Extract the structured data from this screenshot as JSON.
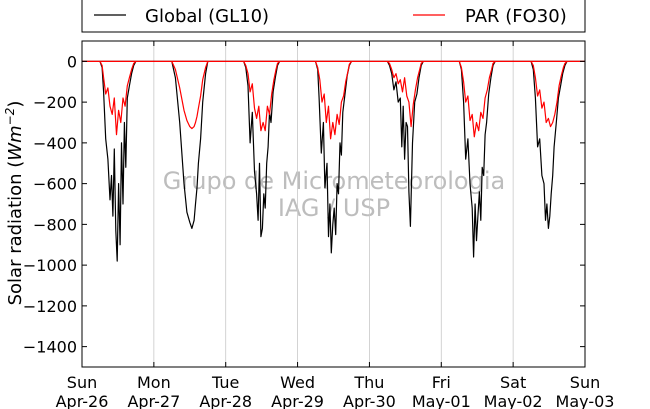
{
  "chart_data": {
    "type": "line",
    "title": "",
    "xlabel": "",
    "ylabel": "Solar radiation (Wm-2)",
    "ylabel_parts": {
      "text": "Solar radiation ",
      "lparen": "(",
      "unit": "Wm",
      "exp": "−2",
      "rparen": ")"
    },
    "ylim": [
      -1500,
      100
    ],
    "yticks": [
      0,
      -200,
      -400,
      -600,
      -800,
      -1000,
      -1200,
      -1400
    ],
    "ytick_labels": [
      "0",
      "−200",
      "−400",
      "−600",
      "−800",
      "−1000",
      "−1200",
      "−1400"
    ],
    "xlim": [
      0,
      7
    ],
    "xticks": [
      0,
      1,
      2,
      3,
      4,
      5,
      6,
      7
    ],
    "xtick_labels": [
      [
        "Sun",
        "Apr-26"
      ],
      [
        "Mon",
        "Apr-27"
      ],
      [
        "Tue",
        "Apr-28"
      ],
      [
        "Wed",
        "Apr-29"
      ],
      [
        "Thu",
        "Apr-30"
      ],
      [
        "Fri",
        "May-01"
      ],
      [
        "Sat",
        "May-02"
      ],
      [
        "Sun",
        "May-03"
      ]
    ],
    "grid": "vertical",
    "legend_position": "top",
    "watermark": [
      "Grupo de Micrometeorologia",
      "IAG / USP"
    ],
    "series": [
      {
        "name": "Global (GL10)",
        "color": "#000000",
        "days": [
          {
            "x": [
              0.25,
              0.28,
              0.3,
              0.33,
              0.36,
              0.39,
              0.41,
              0.43,
              0.45,
              0.47,
              0.49,
              0.51,
              0.53,
              0.55,
              0.57,
              0.59,
              0.61,
              0.63,
              0.66,
              0.69,
              0.72,
              0.75
            ],
            "y": [
              0,
              -30,
              -150,
              -380,
              -480,
              -680,
              -560,
              -760,
              -430,
              -830,
              -980,
              -600,
              -900,
              -400,
              -700,
              -300,
              -520,
              -180,
              -120,
              -60,
              -20,
              0
            ]
          },
          {
            "x": [
              1.25,
              1.3,
              1.36,
              1.42,
              1.46,
              1.5,
              1.53,
              1.56,
              1.58,
              1.6,
              1.62,
              1.65,
              1.68,
              1.72,
              1.75
            ],
            "y": [
              0,
              -80,
              -300,
              -600,
              -740,
              -790,
              -820,
              -780,
              -700,
              -620,
              -500,
              -380,
              -200,
              -60,
              0
            ]
          },
          {
            "x": [
              2.25,
              2.28,
              2.31,
              2.34,
              2.37,
              2.4,
              2.43,
              2.45,
              2.47,
              2.49,
              2.51,
              2.53,
              2.55,
              2.57,
              2.59,
              2.61,
              2.63,
              2.66,
              2.69,
              2.72,
              2.75
            ],
            "y": [
              0,
              -30,
              -120,
              -400,
              -250,
              -540,
              -650,
              -780,
              -500,
              -860,
              -820,
              -650,
              -720,
              -500,
              -420,
              -250,
              -300,
              -150,
              -80,
              -20,
              0
            ]
          },
          {
            "x": [
              3.25,
              3.28,
              3.3,
              3.33,
              3.36,
              3.38,
              3.41,
              3.43,
              3.45,
              3.47,
              3.49,
              3.51,
              3.53,
              3.55,
              3.57,
              3.59,
              3.61,
              3.63,
              3.66,
              3.69,
              3.72,
              3.75
            ],
            "y": [
              0,
              -40,
              -180,
              -450,
              -300,
              -620,
              -500,
              -860,
              -700,
              -940,
              -800,
              -720,
              -850,
              -600,
              -650,
              -400,
              -460,
              -250,
              -160,
              -70,
              -20,
              0
            ]
          },
          {
            "x": [
              4.25,
              4.28,
              4.31,
              4.34,
              4.37,
              4.4,
              4.43,
              4.45,
              4.47,
              4.49,
              4.51,
              4.53,
              4.55,
              4.57,
              4.6,
              4.63,
              4.66,
              4.69,
              4.72,
              4.75
            ],
            "y": [
              0,
              -20,
              -60,
              -140,
              -100,
              -200,
              -180,
              -420,
              -220,
              -480,
              -300,
              -320,
              -640,
              -810,
              -400,
              -200,
              -160,
              -80,
              -20,
              0
            ]
          },
          {
            "x": [
              5.25,
              5.28,
              5.31,
              5.34,
              5.37,
              5.4,
              5.43,
              5.45,
              5.47,
              5.49,
              5.51,
              5.53,
              5.55,
              5.57,
              5.59,
              5.61,
              5.63,
              5.66,
              5.69,
              5.72,
              5.75
            ],
            "y": [
              0,
              -40,
              -200,
              -480,
              -380,
              -600,
              -720,
              -960,
              -700,
              -880,
              -760,
              -640,
              -780,
              -520,
              -560,
              -360,
              -300,
              -160,
              -80,
              -20,
              0
            ]
          },
          {
            "x": [
              6.25,
              6.28,
              6.31,
              6.34,
              6.37,
              6.4,
              6.43,
              6.45,
              6.47,
              6.49,
              6.51,
              6.53,
              6.55,
              6.57,
              6.6,
              6.63,
              6.66,
              6.69,
              6.72,
              6.75
            ],
            "y": [
              0,
              -40,
              -180,
              -420,
              -380,
              -560,
              -600,
              -780,
              -700,
              -820,
              -760,
              -650,
              -560,
              -420,
              -300,
              -180,
              -120,
              -60,
              -20,
              0
            ]
          }
        ]
      },
      {
        "name": "PAR (FO30)",
        "color": "#ff0000",
        "days": [
          {
            "x": [
              0.25,
              0.28,
              0.3,
              0.33,
              0.36,
              0.39,
              0.42,
              0.45,
              0.48,
              0.51,
              0.54,
              0.57,
              0.6,
              0.63,
              0.66,
              0.69,
              0.72,
              0.75
            ],
            "y": [
              0,
              -20,
              -80,
              -160,
              -130,
              -220,
              -260,
              -180,
              -360,
              -240,
              -300,
              -180,
              -220,
              -120,
              -80,
              -40,
              -10,
              0
            ]
          },
          {
            "x": [
              1.25,
              1.3,
              1.36,
              1.42,
              1.46,
              1.5,
              1.53,
              1.56,
              1.58,
              1.6,
              1.62,
              1.65,
              1.68,
              1.72,
              1.75
            ],
            "y": [
              0,
              -40,
              -130,
              -240,
              -290,
              -320,
              -330,
              -320,
              -300,
              -270,
              -230,
              -170,
              -90,
              -30,
              0
            ]
          },
          {
            "x": [
              2.25,
              2.28,
              2.31,
              2.34,
              2.37,
              2.4,
              2.43,
              2.46,
              2.49,
              2.52,
              2.55,
              2.58,
              2.61,
              2.64,
              2.67,
              2.7,
              2.72,
              2.75
            ],
            "y": [
              0,
              -20,
              -60,
              -150,
              -110,
              -230,
              -280,
              -220,
              -340,
              -300,
              -340,
              -220,
              -260,
              -160,
              -90,
              -40,
              -10,
              0
            ]
          },
          {
            "x": [
              3.25,
              3.28,
              3.31,
              3.34,
              3.37,
              3.4,
              3.43,
              3.46,
              3.49,
              3.52,
              3.55,
              3.58,
              3.61,
              3.64,
              3.67,
              3.7,
              3.72,
              3.75
            ],
            "y": [
              0,
              -30,
              -90,
              -200,
              -160,
              -300,
              -220,
              -380,
              -300,
              -360,
              -260,
              -310,
              -200,
              -170,
              -100,
              -50,
              -15,
              0
            ]
          },
          {
            "x": [
              4.25,
              4.28,
              4.31,
              4.34,
              4.37,
              4.4,
              4.43,
              4.46,
              4.49,
              4.52,
              4.55,
              4.58,
              4.61,
              4.64,
              4.67,
              4.7,
              4.72,
              4.75
            ],
            "y": [
              0,
              -10,
              -40,
              -80,
              -60,
              -110,
              -90,
              -150,
              -80,
              -170,
              -200,
              -320,
              -210,
              -140,
              -80,
              -40,
              -10,
              0
            ]
          },
          {
            "x": [
              5.25,
              5.28,
              5.31,
              5.34,
              5.37,
              5.4,
              5.43,
              5.46,
              5.49,
              5.52,
              5.55,
              5.58,
              5.61,
              5.64,
              5.67,
              5.7,
              5.72,
              5.75
            ],
            "y": [
              0,
              -30,
              -100,
              -200,
              -170,
              -290,
              -260,
              -370,
              -300,
              -340,
              -250,
              -280,
              -180,
              -140,
              -80,
              -40,
              -10,
              0
            ]
          },
          {
            "x": [
              6.25,
              6.28,
              6.31,
              6.34,
              6.37,
              6.4,
              6.43,
              6.46,
              6.49,
              6.52,
              6.55,
              6.58,
              6.61,
              6.64,
              6.67,
              6.7,
              6.72,
              6.75
            ],
            "y": [
              0,
              -20,
              -80,
              -170,
              -140,
              -230,
              -200,
              -300,
              -280,
              -320,
              -300,
              -260,
              -200,
              -120,
              -70,
              -30,
              -10,
              0
            ]
          }
        ]
      }
    ]
  }
}
